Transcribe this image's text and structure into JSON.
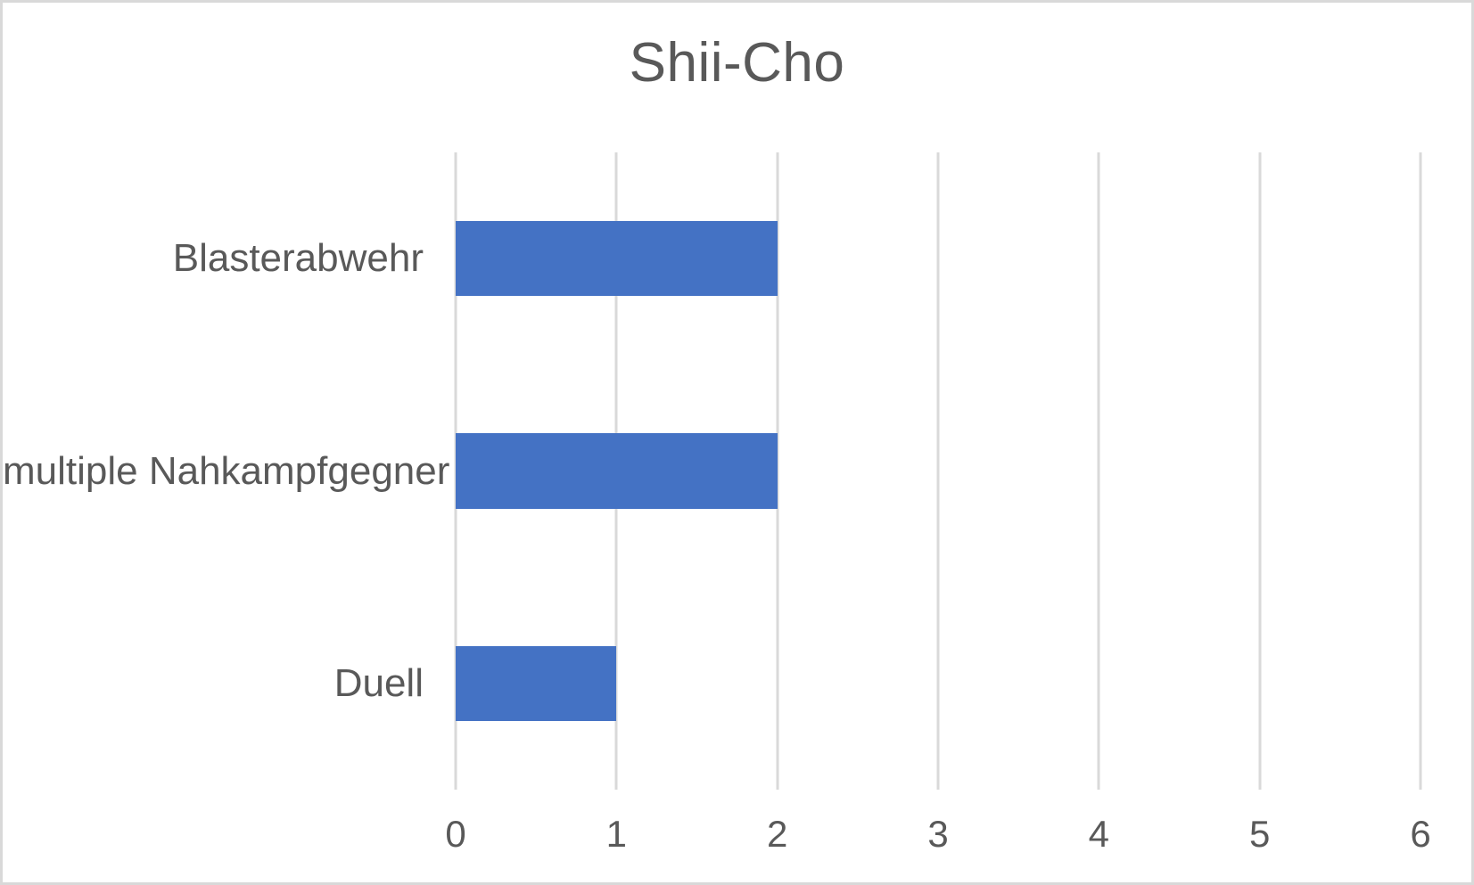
{
  "window": {
    "background_color": "#ffffff",
    "border_color": "#d9d9d9"
  },
  "chart_data": {
    "type": "bar",
    "orientation": "horizontal",
    "title": "Shii-Cho",
    "categories": [
      "Blasterabwehr",
      "multiple Nahkampfgegner",
      "Duell"
    ],
    "values": [
      2,
      2,
      1
    ],
    "series": [
      {
        "name": "Shii-Cho",
        "values": [
          2,
          2,
          1
        ]
      }
    ],
    "xlabel": "",
    "ylabel": "",
    "xlim": [
      0,
      6
    ],
    "x_ticks": [
      0,
      1,
      2,
      3,
      4,
      5,
      6
    ],
    "grid": "vertical-gridlines-on",
    "legend": "none",
    "bar_color": "#4472c4",
    "gridline_color": "#d9d9d9",
    "text_color": "#595959",
    "bar_height_pct": 11.8
  }
}
